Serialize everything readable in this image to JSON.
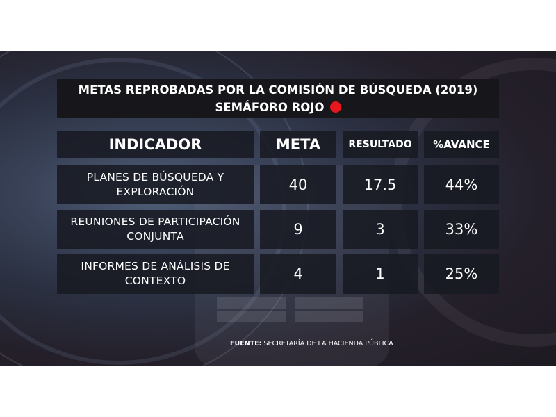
{
  "title": {
    "line1": "METAS REPROBADAS POR LA COMISIÓN DE BÚSQUEDA (2019)",
    "line2": "SEMÁFORO ROJO"
  },
  "table": {
    "headers": [
      "INDICADOR",
      "META",
      "RESULTADO",
      "%AVANCE"
    ],
    "rows": [
      {
        "indicador_l1": "PLANES DE BÚSQUEDA Y",
        "indicador_l2": "EXPLORACIÓN",
        "meta": "40",
        "resultado": "17.5",
        "avance": "44%"
      },
      {
        "indicador_l1": "REUNIONES DE PARTICIPACIÓN",
        "indicador_l2": "CONJUNTA",
        "meta": "9",
        "resultado": "3",
        "avance": "33%"
      },
      {
        "indicador_l1": "INFORMES DE ANÁLISIS DE",
        "indicador_l2": "CONTEXTO",
        "meta": "4",
        "resultado": "1",
        "avance": "25%"
      }
    ]
  },
  "source": {
    "label": "FUENTE:",
    "text": "SECRETARÍA DE LA HACIENDA PÚBLICA"
  },
  "colors": {
    "status_dot": "#e8161d",
    "cell_bg": "#181a22",
    "title_bg": "#17171b"
  }
}
